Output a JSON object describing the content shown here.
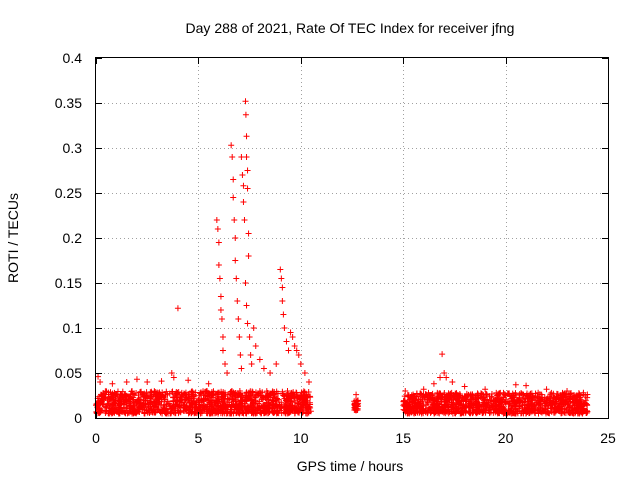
{
  "chart_data": {
    "type": "scatter",
    "title": "Day 288 of 2021, Rate Of TEC Index for receiver jfng",
    "xlabel": "GPS time / hours",
    "ylabel": "ROTI / TECUs",
    "xlim": [
      0,
      25
    ],
    "ylim": [
      0,
      0.4
    ],
    "xticks": [
      0,
      5,
      10,
      15,
      20,
      25
    ],
    "yticks": [
      0,
      0.05,
      0.1,
      0.15,
      0.2,
      0.25,
      0.3,
      0.35,
      0.4
    ],
    "xtick_labels": [
      "0",
      "5",
      "10",
      "15",
      "20",
      "25"
    ],
    "ytick_labels": [
      "0",
      "0.05",
      "0.1",
      "0.15",
      "0.2",
      "0.25",
      "0.3",
      "0.35",
      "0.4"
    ],
    "grid": true,
    "marker": "+",
    "color": "#ff0000",
    "series": [
      {
        "name": "ROTI",
        "background_bands": [
          {
            "x_start": 0.0,
            "x_end": 10.5,
            "y_min": 0.005,
            "y_max": 0.03
          },
          {
            "x_start": 12.6,
            "x_end": 12.8,
            "y_min": 0.008,
            "y_max": 0.02
          },
          {
            "x_start": 15.0,
            "x_end": 24.0,
            "y_min": 0.005,
            "y_max": 0.028
          }
        ],
        "points": [
          [
            0.1,
            0.046
          ],
          [
            0.2,
            0.04
          ],
          [
            0.8,
            0.038
          ],
          [
            1.5,
            0.04
          ],
          [
            2.0,
            0.043
          ],
          [
            2.5,
            0.04
          ],
          [
            3.2,
            0.041
          ],
          [
            3.7,
            0.05
          ],
          [
            3.8,
            0.045
          ],
          [
            4.0,
            0.122
          ],
          [
            4.5,
            0.042
          ],
          [
            5.5,
            0.038
          ],
          [
            5.9,
            0.22
          ],
          [
            5.95,
            0.21
          ],
          [
            6.0,
            0.195
          ],
          [
            6.0,
            0.17
          ],
          [
            6.05,
            0.155
          ],
          [
            6.1,
            0.135
          ],
          [
            6.1,
            0.12
          ],
          [
            6.15,
            0.11
          ],
          [
            6.2,
            0.09
          ],
          [
            6.2,
            0.075
          ],
          [
            6.3,
            0.06
          ],
          [
            6.4,
            0.05
          ],
          [
            6.6,
            0.303
          ],
          [
            6.65,
            0.29
          ],
          [
            6.7,
            0.265
          ],
          [
            6.7,
            0.245
          ],
          [
            6.75,
            0.22
          ],
          [
            6.8,
            0.2
          ],
          [
            6.8,
            0.175
          ],
          [
            6.85,
            0.155
          ],
          [
            6.9,
            0.13
          ],
          [
            6.95,
            0.11
          ],
          [
            7.0,
            0.09
          ],
          [
            7.05,
            0.07
          ],
          [
            7.1,
            0.055
          ],
          [
            7.1,
            0.29
          ],
          [
            7.15,
            0.27
          ],
          [
            7.2,
            0.258
          ],
          [
            7.2,
            0.24
          ],
          [
            7.25,
            0.22
          ],
          [
            7.3,
            0.352
          ],
          [
            7.32,
            0.337
          ],
          [
            7.35,
            0.313
          ],
          [
            7.35,
            0.29
          ],
          [
            7.4,
            0.275
          ],
          [
            7.4,
            0.255
          ],
          [
            7.45,
            0.205
          ],
          [
            7.45,
            0.18
          ],
          [
            7.3,
            0.15
          ],
          [
            7.35,
            0.125
          ],
          [
            7.4,
            0.105
          ],
          [
            7.5,
            0.09
          ],
          [
            7.55,
            0.07
          ],
          [
            7.6,
            0.06
          ],
          [
            7.7,
            0.1
          ],
          [
            7.8,
            0.08
          ],
          [
            8.0,
            0.065
          ],
          [
            8.2,
            0.055
          ],
          [
            8.5,
            0.05
          ],
          [
            8.8,
            0.06
          ],
          [
            9.0,
            0.165
          ],
          [
            9.05,
            0.155
          ],
          [
            9.1,
            0.145
          ],
          [
            9.1,
            0.13
          ],
          [
            9.15,
            0.115
          ],
          [
            9.2,
            0.1
          ],
          [
            9.3,
            0.085
          ],
          [
            9.4,
            0.075
          ],
          [
            9.5,
            0.095
          ],
          [
            9.6,
            0.09
          ],
          [
            9.7,
            0.08
          ],
          [
            9.8,
            0.075
          ],
          [
            9.9,
            0.07
          ],
          [
            10.0,
            0.06
          ],
          [
            10.2,
            0.05
          ],
          [
            10.4,
            0.04
          ],
          [
            12.7,
            0.026
          ],
          [
            12.7,
            0.014
          ],
          [
            15.1,
            0.03
          ],
          [
            16.0,
            0.032
          ],
          [
            16.5,
            0.038
          ],
          [
            16.8,
            0.045
          ],
          [
            16.9,
            0.071
          ],
          [
            17.0,
            0.05
          ],
          [
            17.1,
            0.045
          ],
          [
            17.4,
            0.04
          ],
          [
            18.0,
            0.035
          ],
          [
            19.0,
            0.032
          ],
          [
            20.5,
            0.037
          ],
          [
            21.0,
            0.036
          ],
          [
            22.0,
            0.032
          ],
          [
            23.0,
            0.03
          ],
          [
            23.8,
            0.028
          ]
        ]
      }
    ]
  }
}
